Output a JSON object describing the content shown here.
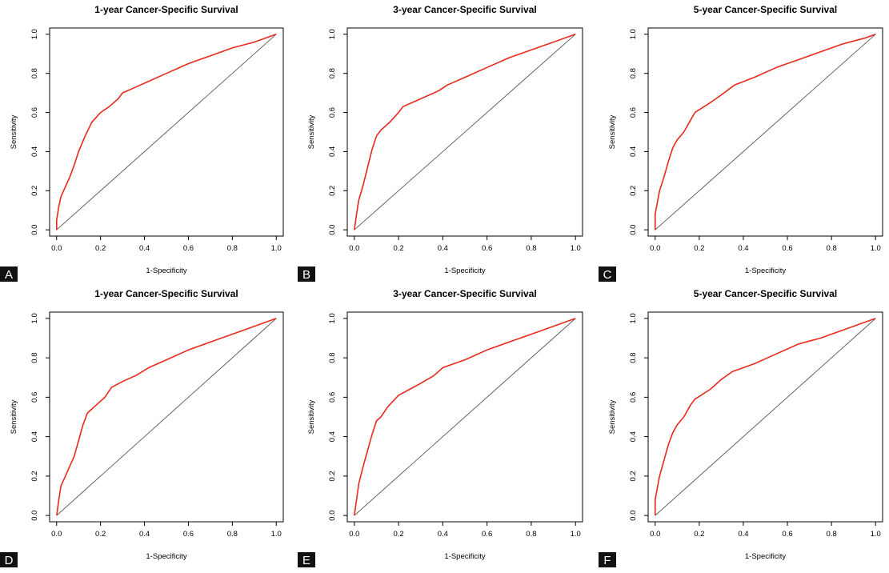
{
  "figure": {
    "colors": {
      "curve": "#e8291c",
      "diagonal": "#555555",
      "axis": "#000000",
      "letter_bg": "#111111"
    }
  },
  "chart_data": [
    {
      "panel": "A",
      "type": "line",
      "title": "1-year Cancer-Specific Survival",
      "xlabel": "1-Specificity",
      "ylabel": "Sensitivity",
      "xlim": [
        0,
        1
      ],
      "ylim": [
        0,
        1
      ],
      "xticks": [
        "0.0",
        "0.2",
        "0.4",
        "0.6",
        "0.8",
        "1.0"
      ],
      "yticks": [
        "0.0",
        "0.2",
        "0.4",
        "0.6",
        "0.8",
        "1.0"
      ],
      "grid": false,
      "legend": "none",
      "series": [
        {
          "x": [
            0,
            0.0,
            0.01,
            0.02,
            0.04,
            0.06,
            0.08,
            0.1,
            0.13,
            0.16,
            0.2,
            0.24,
            0.28,
            0.3,
            0.36,
            0.42,
            0.5,
            0.6,
            0.7,
            0.8,
            0.9,
            1.0
          ],
          "y": [
            0,
            0.05,
            0.12,
            0.17,
            0.22,
            0.27,
            0.33,
            0.4,
            0.48,
            0.55,
            0.6,
            0.63,
            0.67,
            0.7,
            0.73,
            0.76,
            0.8,
            0.85,
            0.89,
            0.93,
            0.96,
            1.0
          ]
        }
      ],
      "reference_line": {
        "x": [
          0,
          1
        ],
        "y": [
          0,
          1
        ]
      }
    },
    {
      "panel": "B",
      "type": "line",
      "title": "3-year Cancer-Specific Survival",
      "xlabel": "1-Specificity",
      "ylabel": "Sensitivity",
      "xlim": [
        0,
        1
      ],
      "ylim": [
        0,
        1
      ],
      "xticks": [
        "0.0",
        "0.2",
        "0.4",
        "0.6",
        "0.8",
        "1.0"
      ],
      "yticks": [
        "0.0",
        "0.2",
        "0.4",
        "0.6",
        "0.8",
        "1.0"
      ],
      "grid": false,
      "legend": "none",
      "series": [
        {
          "x": [
            0,
            0.01,
            0.02,
            0.04,
            0.06,
            0.08,
            0.1,
            0.12,
            0.16,
            0.2,
            0.22,
            0.3,
            0.38,
            0.42,
            0.5,
            0.6,
            0.7,
            0.8,
            0.9,
            1.0
          ],
          "y": [
            0,
            0.08,
            0.15,
            0.23,
            0.32,
            0.41,
            0.48,
            0.51,
            0.55,
            0.6,
            0.63,
            0.67,
            0.71,
            0.74,
            0.78,
            0.83,
            0.88,
            0.92,
            0.96,
            1.0
          ]
        }
      ],
      "reference_line": {
        "x": [
          0,
          1
        ],
        "y": [
          0,
          1
        ]
      }
    },
    {
      "panel": "C",
      "type": "line",
      "title": "5-year Cancer-Specific Survival",
      "xlabel": "1-Specificity",
      "ylabel": "Sensitivity",
      "xlim": [
        0,
        1
      ],
      "ylim": [
        0,
        1
      ],
      "xticks": [
        "0.0",
        "0.2",
        "0.4",
        "0.6",
        "0.8",
        "1.0"
      ],
      "yticks": [
        "0.0",
        "0.2",
        "0.4",
        "0.6",
        "0.8",
        "1.0"
      ],
      "grid": false,
      "legend": "none",
      "series": [
        {
          "x": [
            0,
            0.0,
            0.01,
            0.02,
            0.04,
            0.06,
            0.08,
            0.1,
            0.13,
            0.16,
            0.18,
            0.25,
            0.3,
            0.36,
            0.45,
            0.55,
            0.65,
            0.75,
            0.85,
            0.95,
            1.0
          ],
          "y": [
            0,
            0.08,
            0.14,
            0.2,
            0.27,
            0.35,
            0.42,
            0.46,
            0.5,
            0.56,
            0.6,
            0.65,
            0.69,
            0.74,
            0.78,
            0.83,
            0.87,
            0.91,
            0.95,
            0.98,
            1.0
          ]
        }
      ],
      "reference_line": {
        "x": [
          0,
          1
        ],
        "y": [
          0,
          1
        ]
      }
    },
    {
      "panel": "D",
      "type": "line",
      "title": "1-year Cancer-Specific Survival",
      "xlabel": "1-Specificity",
      "ylabel": "Sensitivity",
      "xlim": [
        0,
        1
      ],
      "ylim": [
        0,
        1
      ],
      "xticks": [
        "0.0",
        "0.2",
        "0.4",
        "0.6",
        "0.8",
        "1.0"
      ],
      "yticks": [
        "0.0",
        "0.2",
        "0.4",
        "0.6",
        "0.8",
        "1.0"
      ],
      "grid": false,
      "legend": "none",
      "series": [
        {
          "x": [
            0,
            0.01,
            0.02,
            0.04,
            0.06,
            0.08,
            0.1,
            0.12,
            0.14,
            0.18,
            0.22,
            0.25,
            0.3,
            0.36,
            0.42,
            0.5,
            0.6,
            0.7,
            0.8,
            0.9,
            1.0
          ],
          "y": [
            0,
            0.08,
            0.15,
            0.2,
            0.25,
            0.3,
            0.38,
            0.46,
            0.52,
            0.56,
            0.6,
            0.65,
            0.68,
            0.71,
            0.75,
            0.79,
            0.84,
            0.88,
            0.92,
            0.96,
            1.0
          ]
        }
      ],
      "reference_line": {
        "x": [
          0,
          1
        ],
        "y": [
          0,
          1
        ]
      }
    },
    {
      "panel": "E",
      "type": "line",
      "title": "3-year Cancer-Specific Survival",
      "xlabel": "1-Specificity",
      "ylabel": "Sensitivity",
      "xlim": [
        0,
        1
      ],
      "ylim": [
        0,
        1
      ],
      "xticks": [
        "0.0",
        "0.2",
        "0.4",
        "0.6",
        "0.8",
        "1.0"
      ],
      "yticks": [
        "0.0",
        "0.2",
        "0.4",
        "0.6",
        "0.8",
        "1.0"
      ],
      "grid": false,
      "legend": "none",
      "series": [
        {
          "x": [
            0,
            0.01,
            0.02,
            0.04,
            0.06,
            0.08,
            0.1,
            0.12,
            0.15,
            0.2,
            0.25,
            0.3,
            0.36,
            0.4,
            0.5,
            0.6,
            0.7,
            0.8,
            0.9,
            1.0
          ],
          "y": [
            0,
            0.08,
            0.16,
            0.25,
            0.33,
            0.41,
            0.48,
            0.5,
            0.55,
            0.61,
            0.64,
            0.67,
            0.71,
            0.75,
            0.79,
            0.84,
            0.88,
            0.92,
            0.96,
            1.0
          ]
        }
      ],
      "reference_line": {
        "x": [
          0,
          1
        ],
        "y": [
          0,
          1
        ]
      }
    },
    {
      "panel": "F",
      "type": "line",
      "title": "5-year Cancer-Specific Survival",
      "xlabel": "1-Specificity",
      "ylabel": "Sensitivity",
      "xlim": [
        0,
        1
      ],
      "ylim": [
        0,
        1
      ],
      "xticks": [
        "0.0",
        "0.2",
        "0.4",
        "0.6",
        "0.8",
        "1.0"
      ],
      "yticks": [
        "0.0",
        "0.2",
        "0.4",
        "0.6",
        "0.8",
        "1.0"
      ],
      "grid": false,
      "legend": "none",
      "series": [
        {
          "x": [
            0,
            0.0,
            0.01,
            0.02,
            0.04,
            0.06,
            0.08,
            0.1,
            0.13,
            0.16,
            0.18,
            0.25,
            0.3,
            0.35,
            0.45,
            0.55,
            0.65,
            0.75,
            0.85,
            0.95,
            1.0
          ],
          "y": [
            0,
            0.08,
            0.14,
            0.2,
            0.28,
            0.36,
            0.42,
            0.46,
            0.5,
            0.56,
            0.59,
            0.64,
            0.69,
            0.73,
            0.77,
            0.82,
            0.87,
            0.9,
            0.94,
            0.98,
            1.0
          ]
        }
      ],
      "reference_line": {
        "x": [
          0,
          1
        ],
        "y": [
          0,
          1
        ]
      }
    }
  ]
}
